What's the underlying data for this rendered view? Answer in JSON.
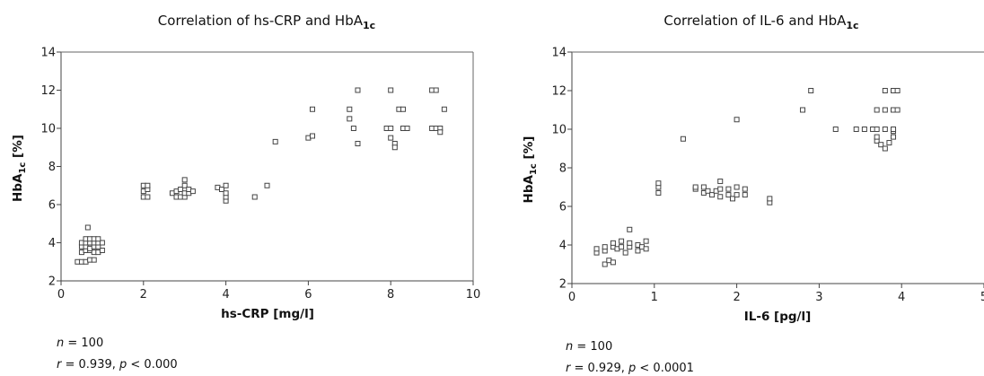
{
  "chart_data": [
    {
      "type": "scatter",
      "title": "Correlation of hs-CRP and HbA",
      "title_sub": "1c",
      "xlabel": "hs-CRP [mg/l]",
      "ylabel": "HbA",
      "ylabel_sub": "1c",
      "ylabel_suffix": " [%]",
      "xlim": [
        0,
        10
      ],
      "ylim": [
        2,
        14
      ],
      "xticks": [
        0,
        2,
        4,
        6,
        8,
        10
      ],
      "yticks": [
        2,
        4,
        6,
        8,
        10,
        12,
        14
      ],
      "xtick_labels": [
        "0",
        "2",
        "4",
        "6",
        "8",
        "10"
      ],
      "ytick_labels": [
        "2",
        "4",
        "6",
        "8",
        "10",
        "12",
        "14"
      ],
      "grid": false,
      "stats": {
        "n_label": "n",
        "n_value": " = 100",
        "r_label": "r",
        "r_value": " = 0.939, ",
        "p_label": "p",
        "p_value": " < 0.000"
      },
      "points": [
        [
          0.4,
          3.0
        ],
        [
          0.5,
          3.0
        ],
        [
          0.6,
          3.0
        ],
        [
          0.7,
          3.1
        ],
        [
          0.8,
          3.1
        ],
        [
          0.5,
          3.5
        ],
        [
          0.6,
          3.6
        ],
        [
          0.7,
          3.6
        ],
        [
          0.8,
          3.5
        ],
        [
          0.9,
          3.5
        ],
        [
          1.0,
          3.6
        ],
        [
          0.5,
          3.8
        ],
        [
          0.6,
          3.8
        ],
        [
          0.7,
          3.7
        ],
        [
          0.8,
          3.8
        ],
        [
          0.9,
          3.8
        ],
        [
          0.5,
          4.0
        ],
        [
          0.6,
          4.0
        ],
        [
          0.7,
          4.0
        ],
        [
          0.8,
          4.0
        ],
        [
          0.9,
          4.0
        ],
        [
          1.0,
          4.0
        ],
        [
          0.6,
          4.2
        ],
        [
          0.7,
          4.2
        ],
        [
          0.8,
          4.2
        ],
        [
          0.9,
          4.2
        ],
        [
          0.65,
          4.8
        ],
        [
          2.0,
          6.4
        ],
        [
          2.0,
          6.7
        ],
        [
          2.0,
          7.0
        ],
        [
          2.1,
          6.4
        ],
        [
          2.1,
          6.8
        ],
        [
          2.1,
          7.0
        ],
        [
          2.7,
          6.6
        ],
        [
          2.8,
          6.4
        ],
        [
          2.8,
          6.7
        ],
        [
          2.9,
          6.4
        ],
        [
          2.9,
          6.8
        ],
        [
          3.0,
          6.4
        ],
        [
          3.0,
          6.6
        ],
        [
          3.0,
          7.0
        ],
        [
          3.0,
          7.3
        ],
        [
          3.1,
          6.6
        ],
        [
          3.1,
          6.8
        ],
        [
          3.2,
          6.7
        ],
        [
          3.8,
          6.9
        ],
        [
          3.9,
          6.8
        ],
        [
          4.0,
          6.2
        ],
        [
          4.0,
          6.4
        ],
        [
          4.0,
          6.6
        ],
        [
          4.0,
          7.0
        ],
        [
          4.7,
          6.4
        ],
        [
          5.0,
          7.0
        ],
        [
          5.2,
          9.3
        ],
        [
          6.0,
          9.5
        ],
        [
          6.1,
          9.6
        ],
        [
          6.1,
          11.0
        ],
        [
          7.0,
          10.5
        ],
        [
          7.0,
          11.0
        ],
        [
          7.1,
          10.0
        ],
        [
          7.2,
          9.2
        ],
        [
          7.2,
          12.0
        ],
        [
          7.9,
          10.0
        ],
        [
          8.0,
          9.5
        ],
        [
          8.0,
          10.0
        ],
        [
          8.0,
          12.0
        ],
        [
          8.1,
          9.2
        ],
        [
          8.1,
          9.0
        ],
        [
          8.2,
          11.0
        ],
        [
          8.3,
          10.0
        ],
        [
          8.3,
          11.0
        ],
        [
          8.4,
          10.0
        ],
        [
          9.0,
          10.0
        ],
        [
          9.0,
          12.0
        ],
        [
          9.1,
          10.0
        ],
        [
          9.1,
          12.0
        ],
        [
          9.2,
          10.0
        ],
        [
          9.2,
          9.8
        ],
        [
          9.3,
          11.0
        ]
      ]
    },
    {
      "type": "scatter",
      "title": "Correlation of IL-6 and HbA",
      "title_sub": "1c",
      "xlabel": "IL-6 [pg/l]",
      "ylabel": "HbA",
      "ylabel_sub": "1c",
      "ylabel_suffix": " [%]",
      "xlim": [
        0,
        5
      ],
      "ylim": [
        2,
        14
      ],
      "xticks": [
        0,
        1,
        2,
        3,
        4,
        5
      ],
      "yticks": [
        2,
        4,
        6,
        8,
        10,
        12,
        14
      ],
      "xtick_labels": [
        "0",
        "1",
        "2",
        "3",
        "4",
        "5"
      ],
      "ytick_labels": [
        "2",
        "4",
        "6",
        "8",
        "10",
        "12",
        "14"
      ],
      "grid": false,
      "stats": {
        "n_label": "n",
        "n_value": " = 100",
        "r_label": "r",
        "r_value": " = 0.929, ",
        "p_label": "p",
        "p_value": " < 0.0001"
      },
      "points": [
        [
          0.3,
          3.6
        ],
        [
          0.3,
          3.8
        ],
        [
          0.4,
          3.7
        ],
        [
          0.4,
          3.9
        ],
        [
          0.4,
          3.0
        ],
        [
          0.45,
          3.2
        ],
        [
          0.5,
          3.1
        ],
        [
          0.5,
          3.9
        ],
        [
          0.5,
          4.1
        ],
        [
          0.55,
          3.8
        ],
        [
          0.6,
          3.9
        ],
        [
          0.6,
          4.2
        ],
        [
          0.65,
          3.6
        ],
        [
          0.7,
          3.9
        ],
        [
          0.7,
          4.1
        ],
        [
          0.7,
          4.8
        ],
        [
          0.8,
          3.7
        ],
        [
          0.8,
          4.0
        ],
        [
          0.85,
          3.9
        ],
        [
          0.9,
          3.8
        ],
        [
          0.9,
          4.2
        ],
        [
          1.05,
          6.7
        ],
        [
          1.05,
          7.0
        ],
        [
          1.05,
          7.2
        ],
        [
          1.35,
          9.5
        ],
        [
          1.5,
          6.9
        ],
        [
          1.5,
          7.0
        ],
        [
          1.6,
          6.7
        ],
        [
          1.6,
          7.0
        ],
        [
          1.65,
          6.8
        ],
        [
          1.7,
          6.6
        ],
        [
          1.75,
          6.8
        ],
        [
          1.8,
          6.5
        ],
        [
          1.8,
          6.9
        ],
        [
          1.8,
          7.3
        ],
        [
          1.9,
          6.6
        ],
        [
          1.9,
          6.9
        ],
        [
          1.95,
          6.4
        ],
        [
          2.0,
          6.6
        ],
        [
          2.0,
          7.0
        ],
        [
          2.0,
          10.5
        ],
        [
          2.1,
          6.6
        ],
        [
          2.1,
          6.9
        ],
        [
          2.4,
          6.2
        ],
        [
          2.4,
          6.4
        ],
        [
          2.8,
          11.0
        ],
        [
          2.9,
          12.0
        ],
        [
          3.2,
          10.0
        ],
        [
          3.45,
          10.0
        ],
        [
          3.55,
          10.0
        ],
        [
          3.65,
          10.0
        ],
        [
          3.7,
          9.4
        ],
        [
          3.7,
          9.6
        ],
        [
          3.7,
          10.0
        ],
        [
          3.7,
          11.0
        ],
        [
          3.75,
          9.2
        ],
        [
          3.8,
          9.0
        ],
        [
          3.8,
          10.0
        ],
        [
          3.8,
          11.0
        ],
        [
          3.8,
          12.0
        ],
        [
          3.85,
          9.3
        ],
        [
          3.9,
          9.6
        ],
        [
          3.9,
          9.9
        ],
        [
          3.9,
          10.0
        ],
        [
          3.9,
          11.0
        ],
        [
          3.9,
          12.0
        ],
        [
          3.95,
          11.0
        ],
        [
          3.95,
          12.0
        ]
      ]
    }
  ]
}
